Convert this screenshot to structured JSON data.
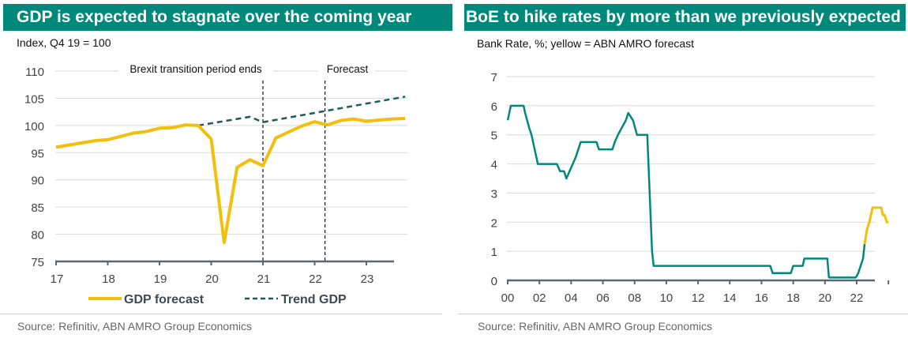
{
  "left": {
    "title": "GDP is expected to stagnate over the coming year",
    "subtitle": "Index, Q4 19 = 100",
    "source": "Source: Refinitiv, ABN AMRO Group Economics",
    "annotations": {
      "brexit": "Brexit transition period ends",
      "forecast": "Forecast"
    },
    "legend": {
      "gdp": "GDP forecast",
      "trend": "Trend GDP"
    }
  },
  "right": {
    "title": "BoE to hike rates by more than we previously expected",
    "subtitle": "Bank Rate, %; yellow = ABN AMRO forecast",
    "source": "Source: Refinitiv, ABN AMRO Group Economics"
  },
  "colors": {
    "teal": "#00897b",
    "yellow": "#f2bf0a",
    "trend": "#1b5e55",
    "grid": "#d9d9d9",
    "axis": "#5a6670"
  },
  "chart_data": [
    {
      "type": "line",
      "title": "GDP is expected to stagnate over the coming year",
      "ylabel": "Index, Q4 19 = 100",
      "ylim": [
        75,
        110
      ],
      "yticks": [
        75,
        80,
        85,
        90,
        95,
        100,
        105,
        110
      ],
      "xlim": [
        17,
        23.8
      ],
      "xticks": [
        "17",
        "18",
        "19",
        "20",
        "21",
        "22",
        "23"
      ],
      "grid": true,
      "legend": "bottom",
      "vlines": [
        {
          "x": 21.0,
          "label": "Brexit transition period ends"
        },
        {
          "x": 22.2,
          "label": "Forecast"
        }
      ],
      "series": [
        {
          "name": "GDP forecast",
          "x": [
            17.0,
            17.25,
            17.5,
            17.75,
            18.0,
            18.25,
            18.5,
            18.75,
            19.0,
            19.25,
            19.5,
            19.75,
            20.0,
            20.25,
            20.5,
            20.75,
            21.0,
            21.25,
            21.5,
            21.75,
            22.0,
            22.25,
            22.5,
            22.75,
            23.0,
            23.25,
            23.5,
            23.75
          ],
          "values": [
            96.0,
            96.4,
            96.8,
            97.2,
            97.4,
            98.0,
            98.6,
            98.9,
            99.5,
            99.6,
            100.1,
            100.0,
            97.5,
            78.5,
            92.3,
            93.7,
            92.6,
            97.7,
            98.8,
            99.9,
            100.7,
            100.1,
            100.9,
            101.2,
            100.8,
            101.0,
            101.2,
            101.3
          ]
        },
        {
          "name": "Trend GDP",
          "x": [
            19.75,
            20.75,
            21.0,
            23.75
          ],
          "values": [
            100.0,
            101.6,
            100.6,
            105.3
          ]
        }
      ]
    },
    {
      "type": "line",
      "title": "BoE to hike rates by more than we previously expected",
      "ylabel": "Bank Rate, %",
      "ylim": [
        0,
        7
      ],
      "yticks": [
        0,
        1,
        2,
        3,
        4,
        5,
        6,
        7
      ],
      "xlim": [
        2000,
        2024
      ],
      "xticks": [
        "00",
        "02",
        "04",
        "06",
        "08",
        "10",
        "12",
        "14",
        "16",
        "18",
        "20",
        "22"
      ],
      "grid": true,
      "series": [
        {
          "name": "Bank Rate",
          "x": [
            2000.0,
            2000.2,
            2001.0,
            2001.1,
            2001.35,
            2001.5,
            2001.7,
            2001.9,
            2003.1,
            2003.3,
            2003.55,
            2003.7,
            2003.9,
            2004.1,
            2004.3,
            2004.6,
            2005.6,
            2005.75,
            2006.6,
            2006.75,
            2006.95,
            2007.2,
            2007.45,
            2007.6,
            2007.9,
            2008.15,
            2008.8,
            2008.95,
            2009.1,
            2009.2,
            2016.55,
            2016.7,
            2017.85,
            2018.0,
            2018.6,
            2018.7,
            2020.15,
            2020.25,
            2021.95,
            2022.1,
            2022.25,
            2022.4,
            2022.5
          ],
          "values": [
            5.5,
            6.0,
            6.0,
            5.75,
            5.25,
            5.0,
            4.5,
            4.0,
            4.0,
            3.75,
            3.75,
            3.5,
            3.75,
            4.0,
            4.25,
            4.75,
            4.75,
            4.5,
            4.5,
            4.75,
            5.0,
            5.25,
            5.5,
            5.75,
            5.5,
            5.0,
            5.0,
            3.0,
            1.0,
            0.5,
            0.5,
            0.25,
            0.25,
            0.5,
            0.5,
            0.75,
            0.75,
            0.1,
            0.1,
            0.25,
            0.5,
            0.75,
            1.25
          ]
        },
        {
          "name": "ABN AMRO forecast",
          "x": [
            2022.5,
            2022.65,
            2022.8,
            2022.9,
            2023.0,
            2023.1,
            2023.55,
            2023.65,
            2023.75,
            2023.9,
            2024.0
          ],
          "values": [
            1.25,
            1.75,
            2.0,
            2.25,
            2.5,
            2.5,
            2.5,
            2.25,
            2.25,
            2.0,
            2.0
          ]
        }
      ]
    }
  ]
}
